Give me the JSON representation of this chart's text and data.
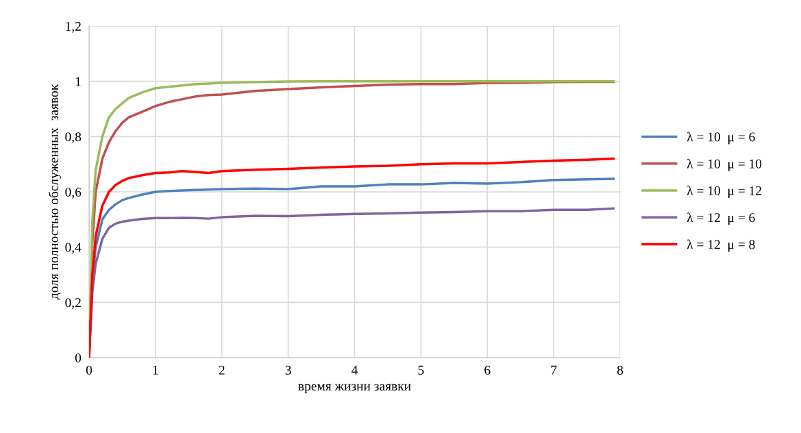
{
  "chart_data": {
    "type": "line",
    "xlabel": "время жизни заявки",
    "ylabel": "доля полностью обслуженных  заявок",
    "x": [
      0,
      0.05,
      0.1,
      0.2,
      0.3,
      0.4,
      0.5,
      0.6,
      0.8,
      1.0,
      1.2,
      1.4,
      1.6,
      1.8,
      2.0,
      2.5,
      3.0,
      3.5,
      4.0,
      4.5,
      5.0,
      5.5,
      6.0,
      6.5,
      7.0,
      7.5,
      7.9
    ],
    "series": [
      {
        "name": "λ = 10  μ = 6",
        "color": "#4f81bd",
        "values": [
          0,
          0.28,
          0.4,
          0.5,
          0.535,
          0.555,
          0.57,
          0.578,
          0.59,
          0.6,
          0.603,
          0.605,
          0.607,
          0.608,
          0.61,
          0.612,
          0.61,
          0.62,
          0.62,
          0.627,
          0.627,
          0.632,
          0.63,
          0.635,
          0.643,
          0.645,
          0.647
        ]
      },
      {
        "name": "λ = 10  μ = 10",
        "color": "#c0504d",
        "values": [
          0,
          0.42,
          0.6,
          0.72,
          0.78,
          0.82,
          0.85,
          0.87,
          0.89,
          0.91,
          0.925,
          0.935,
          0.945,
          0.95,
          0.952,
          0.965,
          0.972,
          0.978,
          0.983,
          0.988,
          0.99,
          0.99,
          0.994,
          0.995,
          0.997,
          0.998,
          0.998
        ]
      },
      {
        "name": "λ = 10  μ = 12",
        "color": "#9bbb59",
        "values": [
          0,
          0.5,
          0.68,
          0.8,
          0.87,
          0.9,
          0.92,
          0.94,
          0.96,
          0.975,
          0.98,
          0.985,
          0.99,
          0.992,
          0.995,
          0.997,
          0.999,
          1,
          1,
          1,
          1,
          1,
          1,
          1,
          1,
          1,
          1
        ]
      },
      {
        "name": "λ = 12  μ = 6",
        "color": "#8064a2",
        "values": [
          0,
          0.24,
          0.34,
          0.43,
          0.47,
          0.485,
          0.492,
          0.496,
          0.502,
          0.505,
          0.505,
          0.506,
          0.505,
          0.503,
          0.508,
          0.513,
          0.512,
          0.517,
          0.52,
          0.522,
          0.525,
          0.527,
          0.53,
          0.53,
          0.535,
          0.535,
          0.54
        ]
      },
      {
        "name": "λ = 12  μ = 8",
        "color": "#ff0000",
        "values": [
          0,
          0.3,
          0.44,
          0.55,
          0.6,
          0.625,
          0.64,
          0.65,
          0.66,
          0.668,
          0.67,
          0.675,
          0.672,
          0.668,
          0.675,
          0.68,
          0.683,
          0.688,
          0.692,
          0.694,
          0.7,
          0.703,
          0.703,
          0.708,
          0.713,
          0.716,
          0.72
        ]
      }
    ],
    "xlim": [
      0,
      8
    ],
    "xticks": [
      0,
      1,
      2,
      3,
      4,
      5,
      6,
      7,
      8
    ],
    "ylim": [
      0,
      1.2
    ],
    "yticks": [
      0,
      {
        "value": 0.2,
        "label": "0,2"
      },
      {
        "value": 0.4,
        "label": "0,4"
      },
      {
        "value": 0.6,
        "label": "0,6"
      },
      {
        "value": 0.8,
        "label": "0,8"
      },
      1,
      {
        "value": 1.2,
        "label": "1,2"
      }
    ],
    "grid": true,
    "legend": "right",
    "marker": "none",
    "line_style": "solid"
  }
}
